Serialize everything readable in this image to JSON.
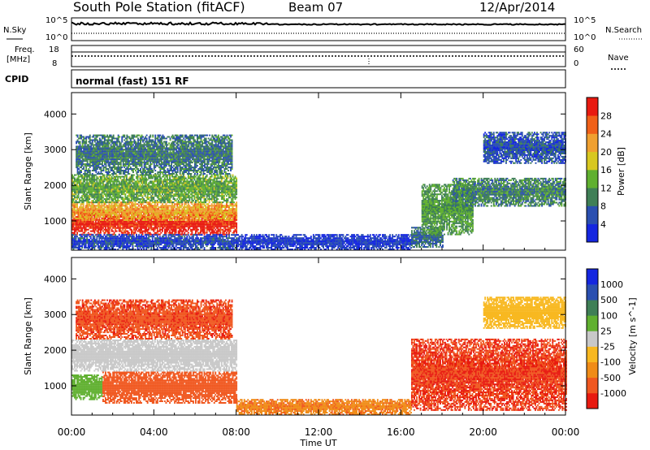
{
  "header": {
    "station": "South Pole Station (fitACF)",
    "beam": "Beam 07",
    "date": "12/Apr/2014"
  },
  "top_panel": {
    "nsky_label": "N.Sky",
    "nsky_ticks": [
      "10^5",
      "10^0"
    ],
    "nsearch_label": "N.Search",
    "nsearch_ticks": [
      "10^5",
      "10^0"
    ],
    "freq_label": "Freq.",
    "freq_unit": "[MHz]",
    "freq_ticks": [
      "18",
      "8"
    ],
    "nave_label": "Nave",
    "nave_ticks": [
      "60",
      "0"
    ],
    "cpid_label": "CPID",
    "cpid_text": "normal (fast) 151 RF"
  },
  "colors": {
    "power": [
      "#1426e0",
      "#2a4fb0",
      "#3f7f56",
      "#60b030",
      "#d8c820",
      "#f0a030",
      "#f06018",
      "#e81a10"
    ],
    "velocity": [
      "#e81a10",
      "#f05820",
      "#f08c18",
      "#f8b820",
      "#c8c8c8",
      "#60b030",
      "#3f7f56",
      "#2a4fb0",
      "#1426e0"
    ]
  },
  "chart_data": [
    {
      "type": "heatmap",
      "name": "power-panel",
      "title": "",
      "xlabel": "",
      "ylabel": "Slant Range [km]",
      "xlim": [
        0,
        24
      ],
      "ylim": [
        180,
        4600
      ],
      "xticks": [
        "00:00",
        "04:00",
        "08:00",
        "12:00",
        "16:00",
        "20:00",
        "00:00"
      ],
      "yticks": [
        1000,
        2000,
        3000,
        4000
      ],
      "colorbar": {
        "label": "Power [dB]",
        "ticks": [
          4,
          8,
          12,
          16,
          20,
          24,
          28
        ],
        "range": [
          0,
          32
        ]
      },
      "regions": [
        {
          "t": [
            0.0,
            8.0
          ],
          "r": [
            600,
            1200
          ],
          "level": 30
        },
        {
          "t": [
            0.0,
            8.0
          ],
          "r": [
            1000,
            1500
          ],
          "level": 22
        },
        {
          "t": [
            0.0,
            8.0
          ],
          "r": [
            1500,
            2300
          ],
          "level": 13
        },
        {
          "t": [
            0.2,
            7.8
          ],
          "r": [
            2300,
            3400
          ],
          "level": 9
        },
        {
          "t": [
            0.0,
            8.0
          ],
          "r": [
            180,
            600
          ],
          "level": 5
        },
        {
          "t": [
            8.0,
            16.5
          ],
          "r": [
            180,
            600
          ],
          "level": 4
        },
        {
          "t": [
            16.5,
            18.0
          ],
          "r": [
            250,
            800
          ],
          "level": 8
        },
        {
          "t": [
            17.0,
            19.5
          ],
          "r": [
            600,
            2000
          ],
          "level": 12
        },
        {
          "t": [
            18.5,
            24.0
          ],
          "r": [
            1400,
            2200
          ],
          "level": 10
        },
        {
          "t": [
            20.0,
            24.0
          ],
          "r": [
            2600,
            3500
          ],
          "level": 6
        }
      ]
    },
    {
      "type": "heatmap",
      "name": "velocity-panel",
      "title": "",
      "xlabel": "Time UT",
      "ylabel": "Slant Range [km]",
      "xlim": [
        0,
        24
      ],
      "ylim": [
        180,
        4600
      ],
      "xticks": [
        "00:00",
        "04:00",
        "08:00",
        "12:00",
        "16:00",
        "20:00",
        "00:00"
      ],
      "yticks": [
        1000,
        2000,
        3000,
        4000
      ],
      "colorbar": {
        "label": "Velocity [m s^-1]",
        "ticks": [
          "1000",
          "500",
          "100",
          "25",
          "-25",
          "-100",
          "-500",
          "-1000"
        ]
      },
      "regions": [
        {
          "t": [
            0.0,
            1.5
          ],
          "r": [
            600,
            1300
          ],
          "value": 300
        },
        {
          "t": [
            1.5,
            8.0
          ],
          "r": [
            500,
            1400
          ],
          "value": -200
        },
        {
          "t": [
            0.0,
            8.0
          ],
          "r": [
            1400,
            2300
          ],
          "value": 50
        },
        {
          "t": [
            0.2,
            7.8
          ],
          "r": [
            2300,
            3400
          ],
          "value": -400
        },
        {
          "t": [
            8.0,
            16.5
          ],
          "r": [
            180,
            600
          ],
          "value": -80
        },
        {
          "t": [
            16.5,
            24.0
          ],
          "r": [
            300,
            2300
          ],
          "value": -500
        },
        {
          "t": [
            20.0,
            24.0
          ],
          "r": [
            2600,
            3500
          ],
          "value": 10
        }
      ]
    }
  ]
}
